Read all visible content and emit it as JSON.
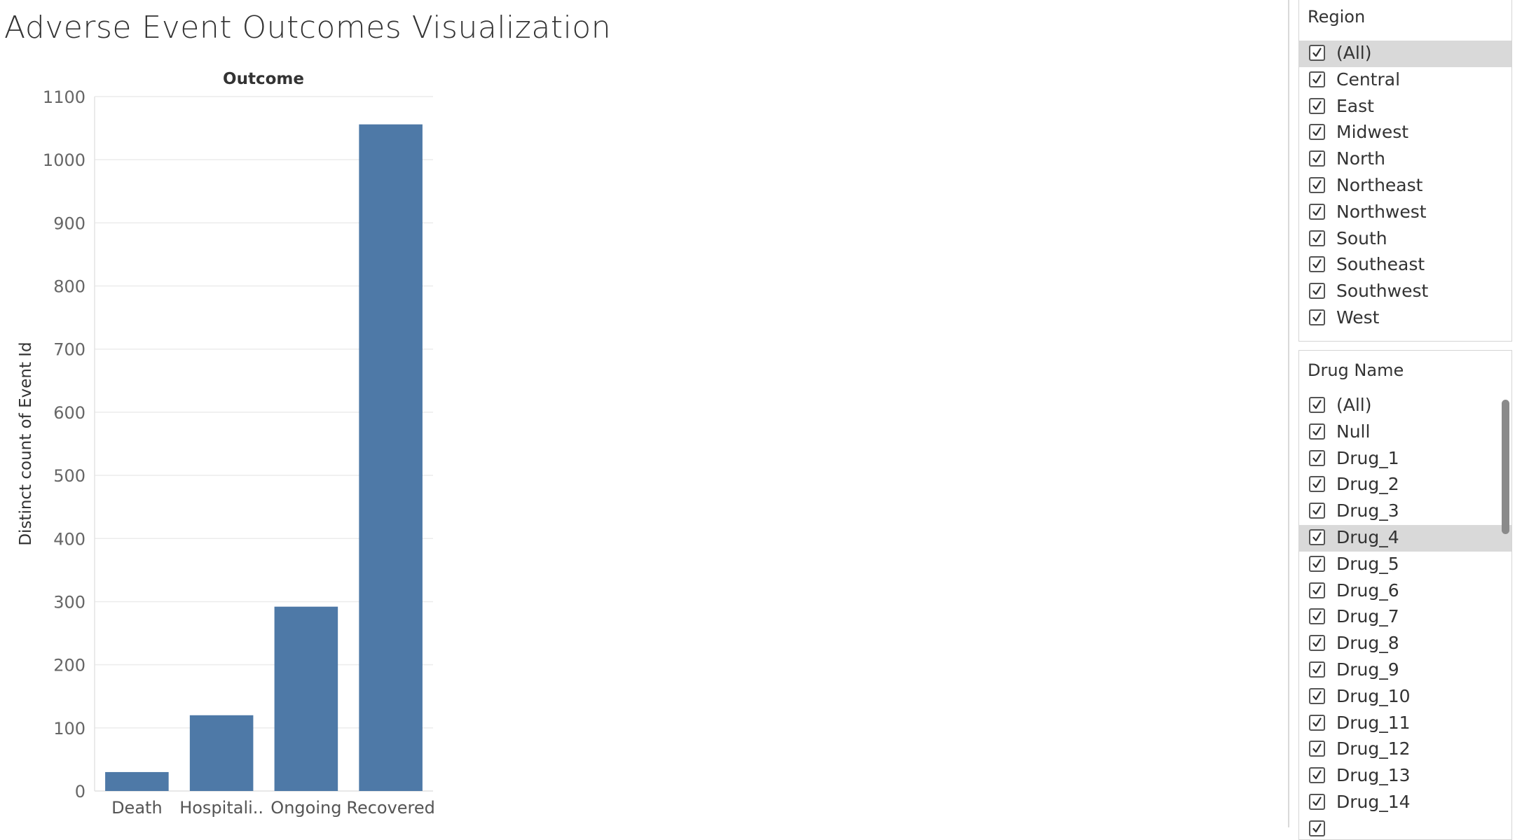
{
  "title": "Adverse Event Outcomes Visualization",
  "chart_data": {
    "type": "bar",
    "title": "Outcome",
    "xlabel": "",
    "ylabel": "Distinct count of Event Id",
    "categories": [
      "Death",
      "Hospitali..",
      "Ongoing",
      "Recovered"
    ],
    "values": [
      30,
      120,
      292,
      1056
    ],
    "ylim": [
      0,
      1100
    ],
    "y_ticks": [
      0,
      100,
      200,
      300,
      400,
      500,
      600,
      700,
      800,
      900,
      1000,
      1100
    ],
    "y_tick_labels": [
      "0",
      "100",
      "200",
      "300",
      "400",
      "500",
      "600",
      "700",
      "800",
      "900",
      "1000",
      "1100"
    ],
    "bar_color": "#4e79a7",
    "grid": true,
    "legend": "none"
  },
  "filters": {
    "region": {
      "title": "Region",
      "items": [
        {
          "label": "(All)",
          "checked": true,
          "highlighted": true
        },
        {
          "label": "Central",
          "checked": true
        },
        {
          "label": "East",
          "checked": true
        },
        {
          "label": "Midwest",
          "checked": true
        },
        {
          "label": "North",
          "checked": true
        },
        {
          "label": "Northeast",
          "checked": true
        },
        {
          "label": "Northwest",
          "checked": true
        },
        {
          "label": "South",
          "checked": true
        },
        {
          "label": "Southeast",
          "checked": true
        },
        {
          "label": "Southwest",
          "checked": true
        },
        {
          "label": "West",
          "checked": true
        }
      ]
    },
    "drug_name": {
      "title": "Drug Name",
      "items": [
        {
          "label": "(All)",
          "checked": true
        },
        {
          "label": "Null",
          "checked": true
        },
        {
          "label": "Drug_1",
          "checked": true
        },
        {
          "label": "Drug_2",
          "checked": true
        },
        {
          "label": "Drug_3",
          "checked": true
        },
        {
          "label": "Drug_4",
          "checked": true,
          "highlighted": true
        },
        {
          "label": "Drug_5",
          "checked": true
        },
        {
          "label": "Drug_6",
          "checked": true
        },
        {
          "label": "Drug_7",
          "checked": true
        },
        {
          "label": "Drug_8",
          "checked": true
        },
        {
          "label": "Drug_9",
          "checked": true
        },
        {
          "label": "Drug_10",
          "checked": true
        },
        {
          "label": "Drug_11",
          "checked": true
        },
        {
          "label": "Drug_12",
          "checked": true
        },
        {
          "label": "Drug_13",
          "checked": true
        },
        {
          "label": "Drug_14",
          "checked": true
        },
        {
          "label": "",
          "checked": true
        }
      ]
    }
  },
  "icons": {
    "checkbox": "checkmark-icon"
  }
}
